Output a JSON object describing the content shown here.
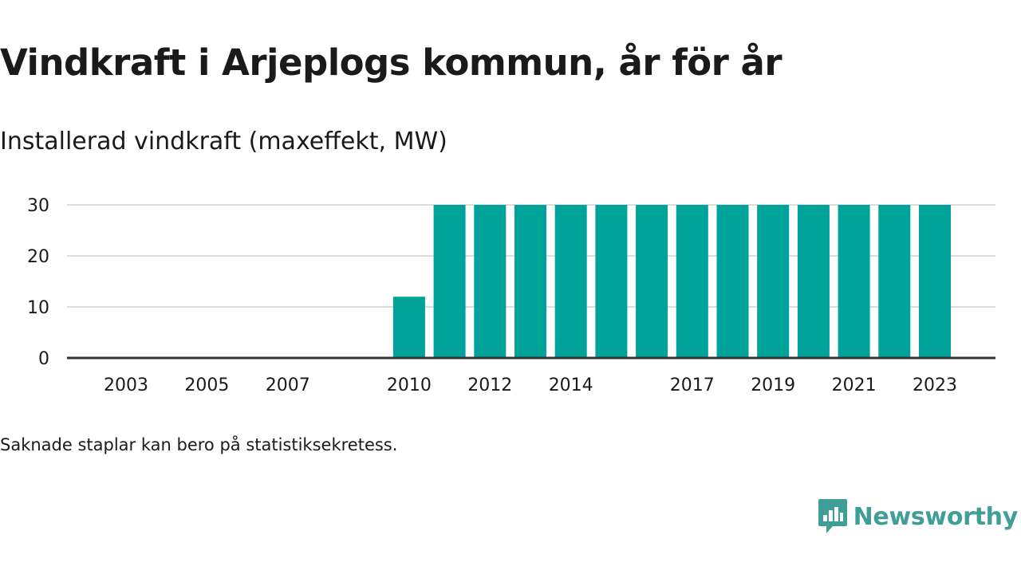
{
  "header": {
    "title": "Vindkraft i Arjeplogs kommun, år för år",
    "subtitle": "Installerad vindkraft (maxeffekt, MW)"
  },
  "footnote": "Saknade staplar kan bero på statistiksekretess.",
  "brand": {
    "name": "Newsworthy",
    "color": "#3f9f97",
    "logo_icon": "bar-chart-speech-bubble-icon"
  },
  "colors": {
    "bar": "#00a39a",
    "grid": "#dddddd",
    "axis": "#333333",
    "text": "#1a1a1a"
  },
  "chart_data": {
    "type": "bar",
    "title": "Vindkraft i Arjeplogs kommun, år för år",
    "subtitle": "Installerad vindkraft (maxeffekt, MW)",
    "xlabel": "",
    "ylabel": "",
    "categories": [
      "2003",
      "2004",
      "2005",
      "2006",
      "2007",
      "2008",
      "2009",
      "2010",
      "2011",
      "2012",
      "2013",
      "2014",
      "2015",
      "2016",
      "2017",
      "2018",
      "2019",
      "2020",
      "2021",
      "2022",
      "2023"
    ],
    "values": [
      0,
      0,
      0,
      0,
      0,
      0,
      0,
      12,
      30,
      30,
      30,
      30,
      30,
      30,
      30,
      30,
      30,
      30,
      30,
      30,
      30
    ],
    "x_tick_labels": [
      "2003",
      "2005",
      "2007",
      "2010",
      "2012",
      "2014",
      "2017",
      "2019",
      "2021",
      "2023"
    ],
    "y_ticks": [
      0,
      10,
      20,
      30
    ],
    "ylim": [
      0,
      30
    ],
    "grid": true,
    "legend": "none"
  }
}
